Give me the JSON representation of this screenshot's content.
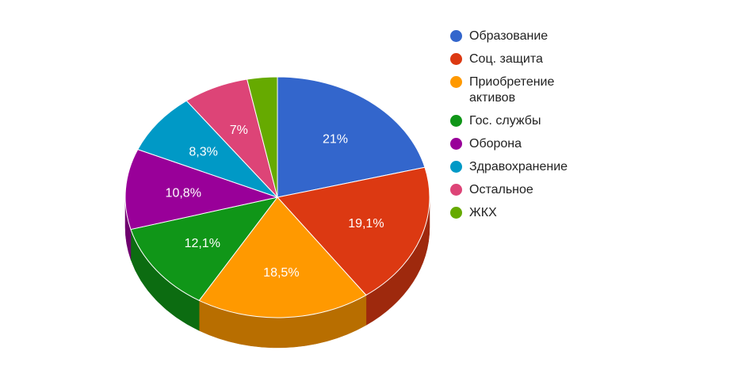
{
  "chart_data": {
    "type": "pie",
    "style": "3d",
    "legend_position": "right",
    "labels": [
      "Образование",
      "Соц. защита",
      "Приобретение активов",
      "Гос. службы",
      "Оборона",
      "Здравохранение",
      "Остальное",
      "ЖКХ"
    ],
    "legend_lines": [
      [
        "Образование"
      ],
      [
        "Соц. защита"
      ],
      [
        "Приобретение",
        "активов"
      ],
      [
        "Гос. службы"
      ],
      [
        "Оборона"
      ],
      [
        "Здравохранение"
      ],
      [
        "Остальное"
      ],
      [
        "ЖКХ"
      ]
    ],
    "values": [
      21,
      19.1,
      18.5,
      12.1,
      10.8,
      8.3,
      7,
      3.2
    ],
    "value_labels": [
      "21%",
      "19,1%",
      "18,5%",
      "12,1%",
      "10,8%",
      "8,3%",
      "7%",
      ""
    ],
    "colors": [
      "#3366cc",
      "#dc3912",
      "#ff9900",
      "#109618",
      "#990099",
      "#0099c6",
      "#dd4477",
      "#66aa00"
    ]
  }
}
